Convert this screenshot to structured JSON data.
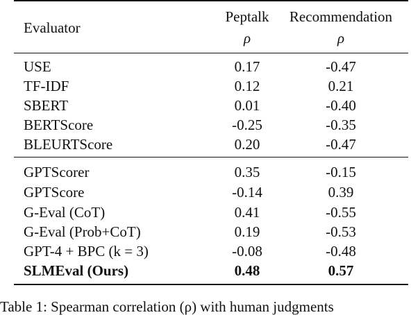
{
  "table": {
    "header": {
      "evaluator_label": "Evaluator",
      "peptalk_label": "Peptalk",
      "recommendation_label": "Recommendation",
      "peptalk_metric": "ρ",
      "recommendation_metric": "ρ"
    },
    "group1": [
      {
        "evaluator": "USE",
        "peptalk": "0.17",
        "recommendation": "-0.47"
      },
      {
        "evaluator": "TF-IDF",
        "peptalk": "0.12",
        "recommendation": "0.21"
      },
      {
        "evaluator": "SBERT",
        "peptalk": "0.01",
        "recommendation": "-0.40"
      },
      {
        "evaluator": "BERTScore",
        "peptalk": "-0.25",
        "recommendation": "-0.35"
      },
      {
        "evaluator": "BLEURTScore",
        "peptalk": "0.20",
        "recommendation": "-0.47"
      }
    ],
    "group2": [
      {
        "evaluator": "GPTScorer",
        "peptalk": "0.35",
        "recommendation": "-0.15"
      },
      {
        "evaluator": "GPTScore",
        "peptalk": "-0.14",
        "recommendation": "0.39"
      },
      {
        "evaluator": "G-Eval (CoT)",
        "peptalk": "0.41",
        "recommendation": "-0.55"
      },
      {
        "evaluator": "G-Eval (Prob+CoT)",
        "peptalk": "0.19",
        "recommendation": "-0.53"
      },
      {
        "evaluator": "GPT-4 + BPC (k = 3)",
        "peptalk": "-0.08",
        "recommendation": "-0.48"
      },
      {
        "evaluator": "SLMEval (Ours)",
        "peptalk": "0.48",
        "recommendation": "0.57"
      }
    ]
  },
  "caption": "Table 1: Spearman correlation (ρ) with human judgments"
}
